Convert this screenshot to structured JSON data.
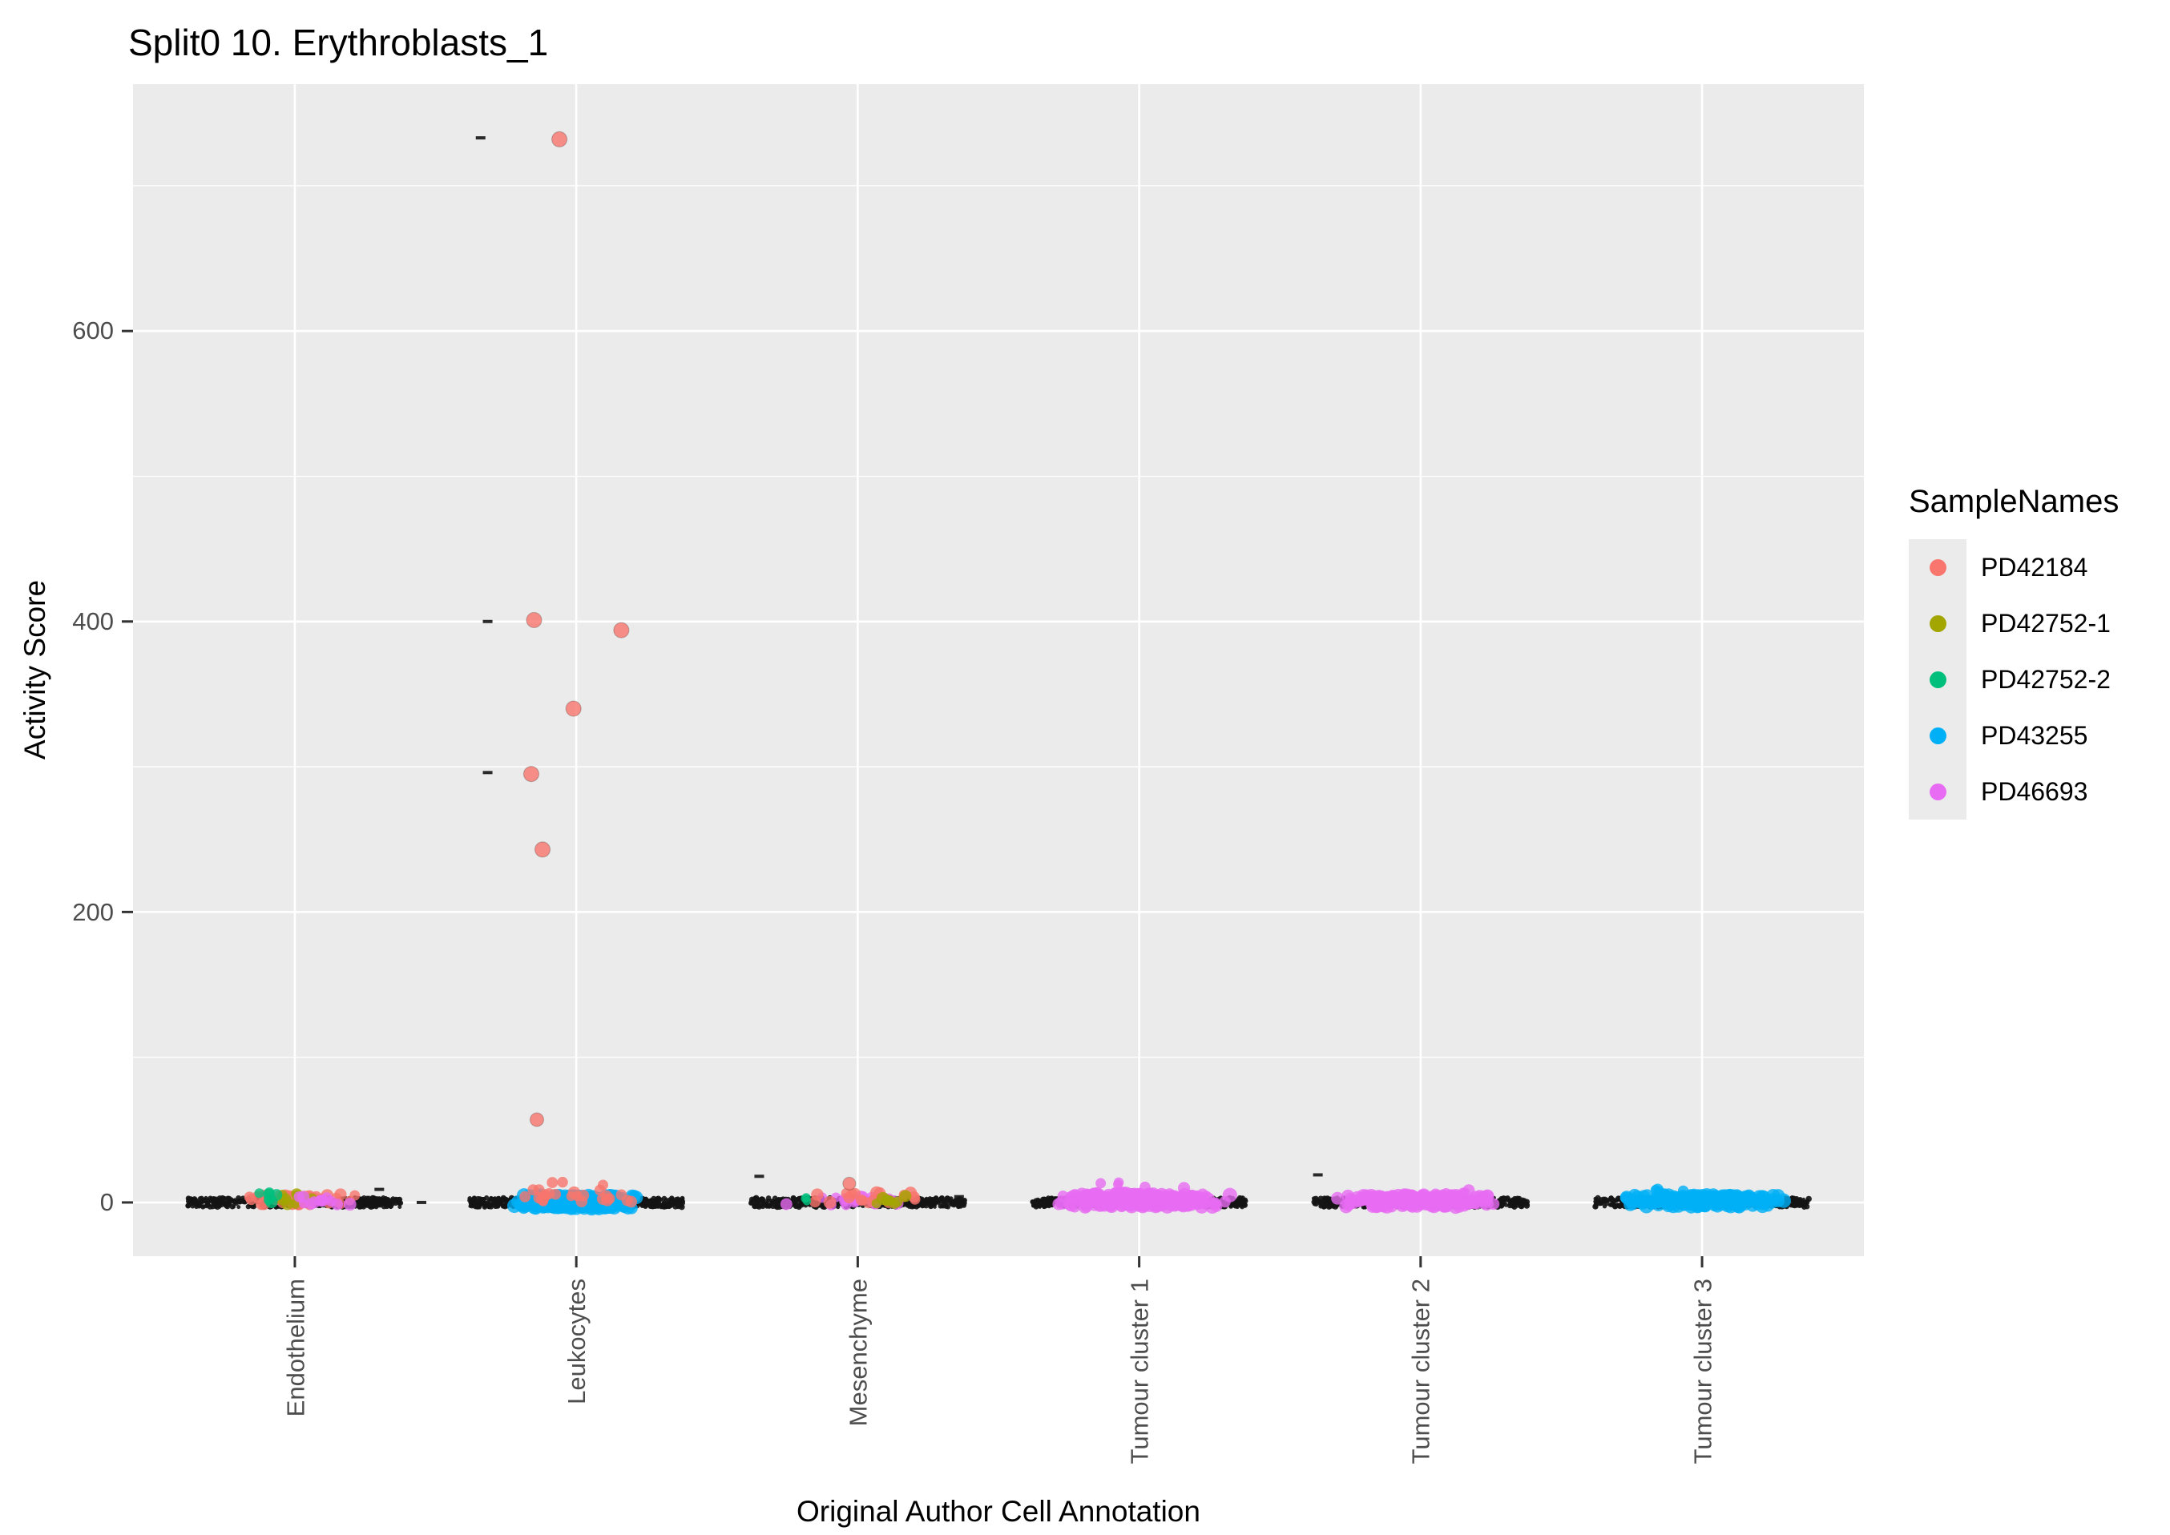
{
  "chart_data": {
    "type": "scatter",
    "subtype": "jitter-strip",
    "title": "Split0 10. Erythroblasts_1",
    "xlabel": "Original Author Cell Annotation",
    "ylabel": "Activity Score",
    "categories": [
      "Endothelium",
      "Leukocytes",
      "Mesenchyme",
      "Tumour cluster 1",
      "Tumour cluster 2",
      "Tumour cluster 3"
    ],
    "yticks": [
      0,
      200,
      400,
      600
    ],
    "ylim": [
      -37,
      770
    ],
    "grid": true,
    "panel_bg": "#EBEBEB",
    "grid_color": "#FFFFFF",
    "tick_color": "#333333",
    "strip_point_color": "#141414",
    "legend": {
      "title": "SampleNames",
      "position": "right",
      "key_bg": "#EBEBEB",
      "entries": [
        {
          "label": "PD42184",
          "color": "#F8766D"
        },
        {
          "label": "PD42752-1",
          "color": "#A3A500"
        },
        {
          "label": "PD42752-2",
          "color": "#00BF7D"
        },
        {
          "label": "PD43255",
          "color": "#00B0F6"
        },
        {
          "label": "PD46693",
          "color": "#E76BF3"
        }
      ]
    },
    "base_strips": [
      {
        "category": 0,
        "half_width": 0.38,
        "n": 520,
        "y_jitter": 3.2
      },
      {
        "category": 1,
        "half_width": 0.38,
        "n": 640,
        "y_jitter": 3.2
      },
      {
        "category": 2,
        "half_width": 0.38,
        "n": 520,
        "y_jitter": 3.2
      },
      {
        "category": 3,
        "half_width": 0.38,
        "n": 560,
        "y_jitter": 3.2
      },
      {
        "category": 4,
        "half_width": 0.38,
        "n": 540,
        "y_jitter": 3.2
      },
      {
        "category": 5,
        "half_width": 0.38,
        "n": 520,
        "y_jitter": 3.2
      }
    ],
    "blobs": [
      {
        "category": 0,
        "sample": "PD42184",
        "cx": 0.0,
        "dx": 0.22,
        "n": 40,
        "y0": -2,
        "y1": 6,
        "r": 7
      },
      {
        "category": 0,
        "sample": "PD42752-1",
        "cx": -0.02,
        "dx": 0.1,
        "n": 9,
        "y0": -1,
        "y1": 6,
        "r": 7
      },
      {
        "category": 0,
        "sample": "PD42752-2",
        "cx": -0.08,
        "dx": 0.06,
        "n": 7,
        "y0": 0,
        "y1": 7,
        "r": 7
      },
      {
        "category": 0,
        "sample": "PD46693",
        "cx": 0.1,
        "dx": 0.13,
        "n": 12,
        "y0": -2,
        "y1": 4,
        "r": 7
      },
      {
        "category": 1,
        "sample": "PD43255",
        "cx": 0.0,
        "dx": 0.23,
        "n": 260,
        "y0": -4,
        "y1": 5,
        "r": 8
      },
      {
        "category": 1,
        "sample": "PD42184",
        "cx": 0.0,
        "dx": 0.27,
        "n": 26,
        "y0": 0,
        "y1": 14,
        "r": 7
      },
      {
        "category": 2,
        "sample": "PD46693",
        "cx": 0.0,
        "dx": 0.26,
        "n": 24,
        "y0": -2,
        "y1": 5,
        "r": 7
      },
      {
        "category": 2,
        "sample": "PD42184",
        "cx": 0.04,
        "dx": 0.22,
        "n": 20,
        "y0": -1,
        "y1": 7,
        "r": 7
      },
      {
        "category": 2,
        "sample": "PD42752-1",
        "cx": 0.13,
        "dx": 0.1,
        "n": 8,
        "y0": -1,
        "y1": 5,
        "r": 7
      },
      {
        "category": 2,
        "sample": "PD42752-2",
        "cx": -0.2,
        "dx": 0.05,
        "n": 3,
        "y0": 0,
        "y1": 4,
        "r": 6
      },
      {
        "category": 3,
        "sample": "PD46693",
        "cx": 0.0,
        "dx": 0.33,
        "n": 240,
        "y0": -3,
        "y1": 6,
        "r": 8
      },
      {
        "category": 3,
        "sample": "PD46693",
        "cx": 0.0,
        "dx": 0.26,
        "n": 9,
        "y0": 6,
        "y1": 15,
        "r": 7
      },
      {
        "category": 4,
        "sample": "PD46693",
        "cx": 0.0,
        "dx": 0.31,
        "n": 190,
        "y0": -3,
        "y1": 5,
        "r": 8
      },
      {
        "category": 4,
        "sample": "PD46693",
        "cx": 0.14,
        "dx": 0.16,
        "n": 5,
        "y0": 5,
        "y1": 9,
        "r": 7
      },
      {
        "category": 5,
        "sample": "PD43255",
        "cx": 0.0,
        "dx": 0.3,
        "n": 200,
        "y0": -3,
        "y1": 5,
        "r": 8
      },
      {
        "category": 5,
        "sample": "PD43255",
        "cx": -0.04,
        "dx": 0.2,
        "n": 6,
        "y0": 5,
        "y1": 9,
        "r": 7
      }
    ],
    "outliers": [
      {
        "category": 1,
        "sample": "PD42184",
        "dx": -0.06,
        "y": 732,
        "r": 9.5
      },
      {
        "category": 1,
        "sample": "PD42184",
        "dx": -0.15,
        "y": 401,
        "r": 9.5
      },
      {
        "category": 1,
        "sample": "PD42184",
        "dx": 0.16,
        "y": 394,
        "r": 9.5
      },
      {
        "category": 1,
        "sample": "PD42184",
        "dx": -0.01,
        "y": 340,
        "r": 9.5
      },
      {
        "category": 1,
        "sample": "PD42184",
        "dx": -0.16,
        "y": 295,
        "r": 9.5
      },
      {
        "category": 1,
        "sample": "PD42184",
        "dx": -0.12,
        "y": 243,
        "r": 9.5
      },
      {
        "category": 1,
        "sample": "PD42184",
        "dx": -0.14,
        "y": 57,
        "r": 8.5
      },
      {
        "category": 2,
        "sample": "PD42184",
        "dx": -0.03,
        "y": 13,
        "r": 8
      }
    ],
    "stray_ticks": [
      {
        "category": 1,
        "dx": -0.34,
        "y": 733
      },
      {
        "category": 1,
        "dx": -0.315,
        "y": 400
      },
      {
        "category": 1,
        "dx": -0.315,
        "y": 296
      },
      {
        "category": 2,
        "dx": -0.35,
        "y": 18
      },
      {
        "category": 4,
        "dx": -0.365,
        "y": 19
      },
      {
        "category": 0,
        "dx": 0.45,
        "y": 0
      },
      {
        "category": 0,
        "dx": 0.3,
        "y": 9
      },
      {
        "category": 2,
        "dx": 0.36,
        "y": 4
      }
    ]
  }
}
